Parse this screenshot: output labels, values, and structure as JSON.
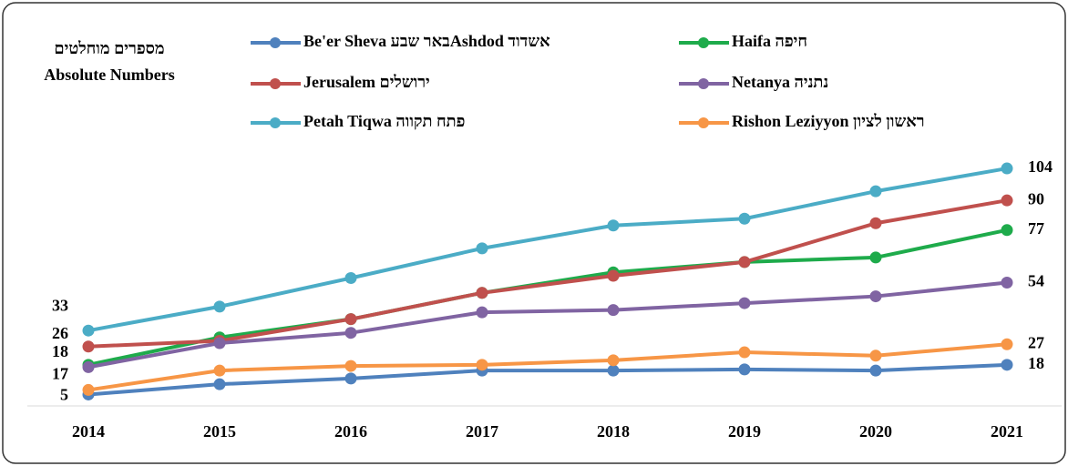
{
  "chart_data": {
    "type": "line",
    "title": "מספרים מוחלטים",
    "subtitle": "Absolute Numbers",
    "categories": [
      "2014",
      "2015",
      "2016",
      "2017",
      "2018",
      "2019",
      "2020",
      "2021"
    ],
    "ylim": [
      0,
      110
    ],
    "series": [
      {
        "name": "Be'er Sheva באר שבעAshdod  אשדוד",
        "color": "#4f81bd",
        "values": [
          5,
          9.5,
          12,
          15.5,
          15.5,
          16,
          15.5,
          18
        ]
      },
      {
        "name": "Haifa חיפה",
        "color": "#1eab4b",
        "values": [
          18,
          30,
          38,
          49.5,
          58.5,
          63,
          65,
          77
        ]
      },
      {
        "name": "Jerusalem ירושלים",
        "color": "#c0504d",
        "values": [
          26,
          28.5,
          38,
          49.5,
          57,
          63,
          80,
          90
        ]
      },
      {
        "name": "Netanya נתניה",
        "color": "#8064a2",
        "values": [
          17,
          27.5,
          32,
          41,
          42,
          45,
          48,
          54
        ]
      },
      {
        "name": "Petah Tiqwa פתח תקווה",
        "color": "#4bacc6",
        "values": [
          33,
          43.5,
          56,
          69,
          79,
          82,
          94,
          104
        ]
      },
      {
        "name": "Rishon Leziyyon ראשון לציון",
        "color": "#f79646",
        "values": [
          7,
          15.5,
          17.5,
          18,
          20,
          23.5,
          22,
          27
        ]
      }
    ]
  }
}
